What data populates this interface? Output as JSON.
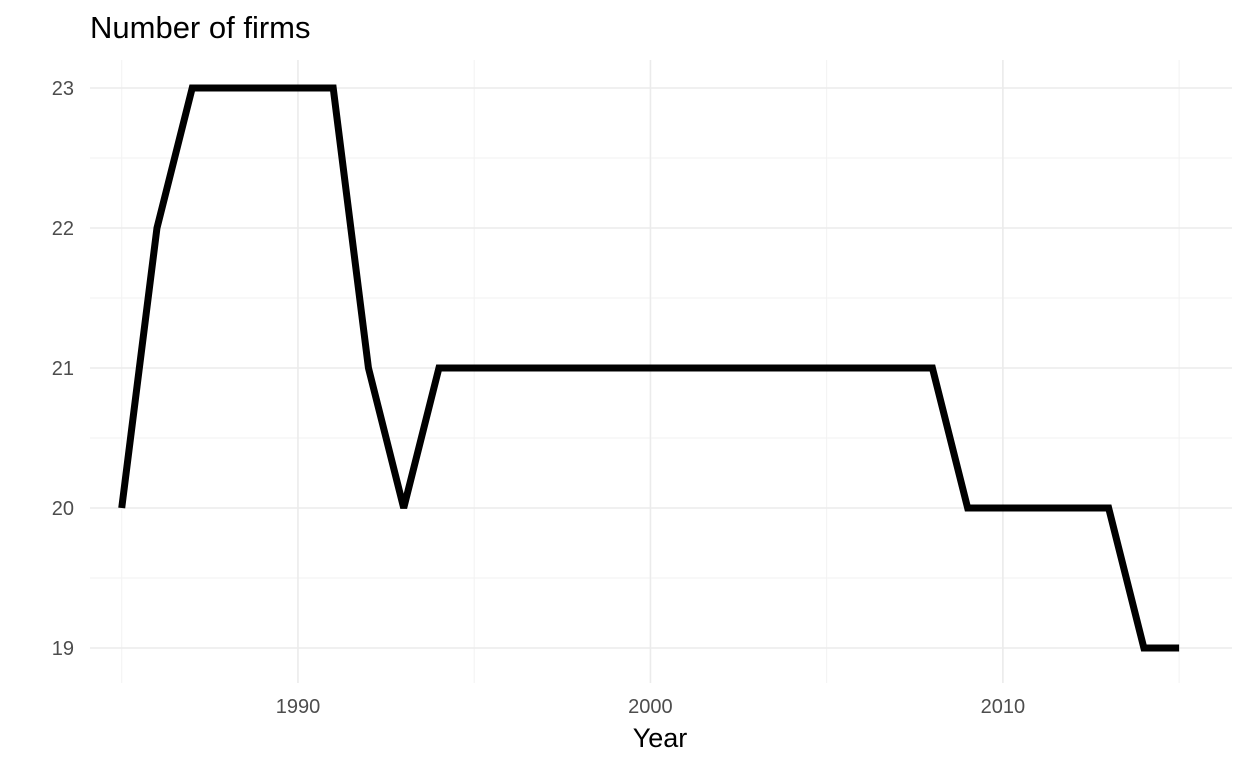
{
  "chart_data": {
    "type": "line",
    "title": "Number of firms",
    "xlabel": "Year",
    "ylabel": "",
    "x": [
      1985,
      1986,
      1987,
      1988,
      1989,
      1990,
      1991,
      1992,
      1993,
      1994,
      1995,
      1996,
      1997,
      1998,
      1999,
      2000,
      2001,
      2002,
      2003,
      2004,
      2005,
      2006,
      2007,
      2008,
      2009,
      2010,
      2011,
      2012,
      2013,
      2014,
      2015
    ],
    "series": [
      {
        "values": [
          20,
          22,
          23,
          23,
          23,
          23,
          23,
          21,
          20,
          21,
          21,
          21,
          21,
          21,
          21,
          21,
          21,
          21,
          21,
          21,
          21,
          21,
          21,
          21,
          20,
          20,
          20,
          20,
          20,
          19,
          19
        ],
        "color": "#000000"
      }
    ],
    "xlim": [
      1984.1,
      2016.5
    ],
    "ylim": [
      18.75,
      23.2
    ],
    "xticks": [
      1990,
      2000,
      2010
    ],
    "yticks": [
      19,
      20,
      21,
      22,
      23
    ],
    "grid": true,
    "legend": "none"
  }
}
